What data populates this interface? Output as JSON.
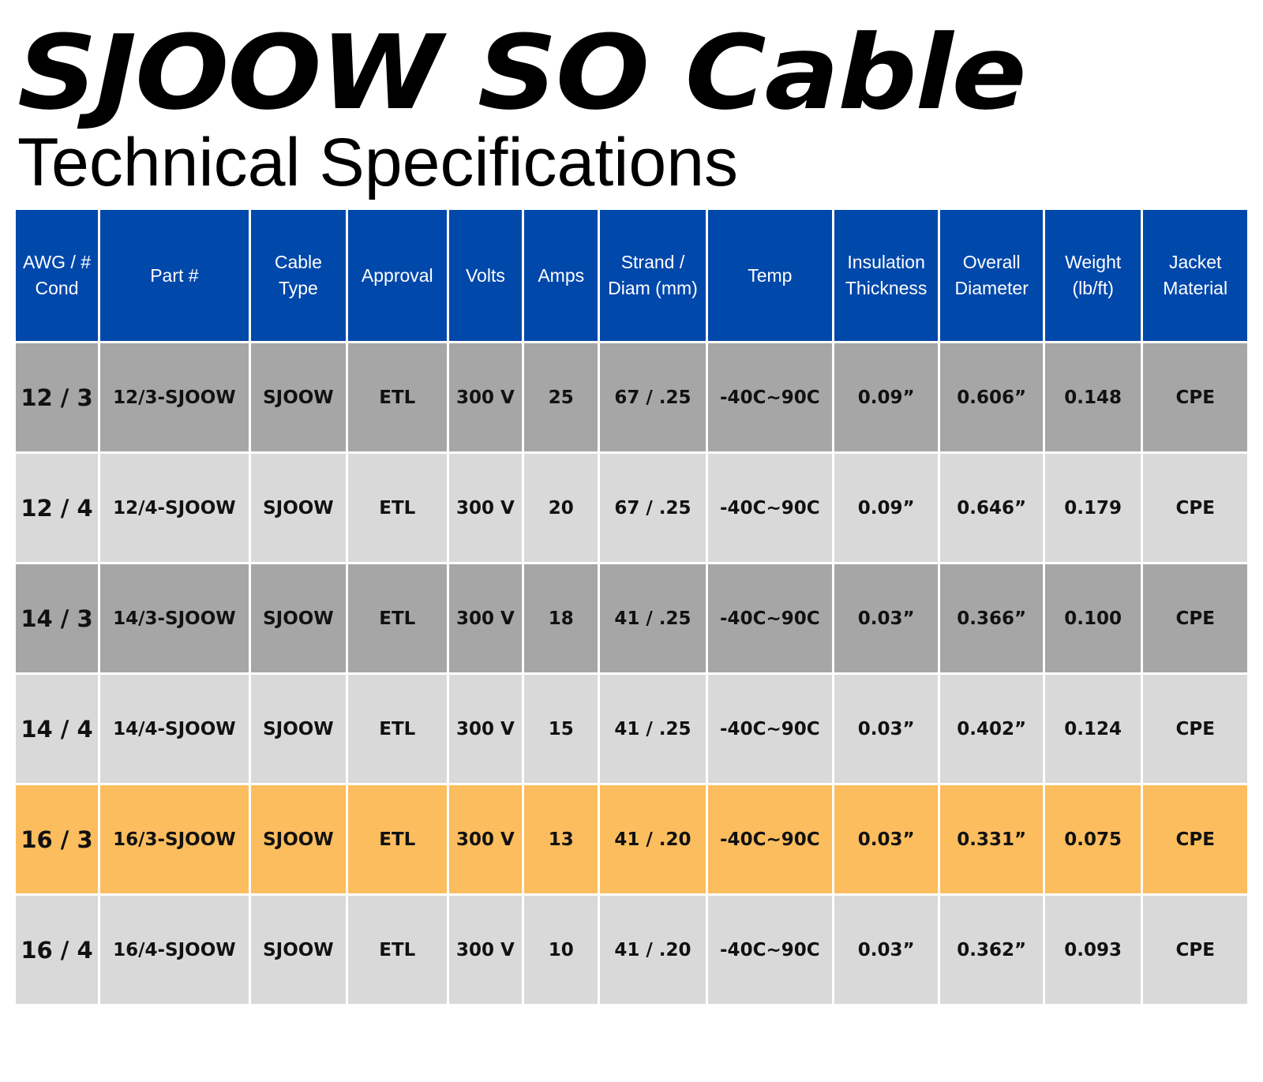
{
  "title": "SJOOW SO Cable",
  "subtitle": "Technical Specifications",
  "colors": {
    "header_bg": "#0148AB",
    "row_dark": "#A6A6A6",
    "row_light": "#D9D9D9",
    "row_highlight": "#FCBD5E"
  },
  "table": {
    "headers": [
      "AWG / # Cond",
      "Part #",
      "Cable Type",
      "Approval",
      "Volts",
      "Amps",
      "Strand / Diam (mm)",
      "Temp",
      "Insulation Thickness",
      "Overall Diameter",
      "Weight (lb/ft)",
      "Jacket Material"
    ],
    "rows": [
      [
        "12 / 3",
        "12/3-SJOOW",
        "SJOOW",
        "ETL",
        "300 V",
        "25",
        "67 / .25",
        "-40C~90C",
        "0.09”",
        "0.606”",
        "0.148",
        "CPE"
      ],
      [
        "12 / 4",
        "12/4-SJOOW",
        "SJOOW",
        "ETL",
        "300 V",
        "20",
        "67 / .25",
        "-40C~90C",
        "0.09”",
        "0.646”",
        "0.179",
        "CPE"
      ],
      [
        "14 / 3",
        "14/3-SJOOW",
        "SJOOW",
        "ETL",
        "300 V",
        "18",
        "41 / .25",
        "-40C~90C",
        "0.03”",
        "0.366”",
        "0.100",
        "CPE"
      ],
      [
        "14 / 4",
        "14/4-SJOOW",
        "SJOOW",
        "ETL",
        "300 V",
        "15",
        "41 / .25",
        "-40C~90C",
        "0.03”",
        "0.402”",
        "0.124",
        "CPE"
      ],
      [
        "16 / 3",
        "16/3-SJOOW",
        "SJOOW",
        "ETL",
        "300 V",
        "13",
        "41 / .20",
        "-40C~90C",
        "0.03”",
        "0.331”",
        "0.075",
        "CPE"
      ],
      [
        "16 / 4",
        "16/4-SJOOW",
        "SJOOW",
        "ETL",
        "300 V",
        "10",
        "41 / .20",
        "-40C~90C",
        "0.03”",
        "0.362”",
        "0.093",
        "CPE"
      ]
    ]
  }
}
